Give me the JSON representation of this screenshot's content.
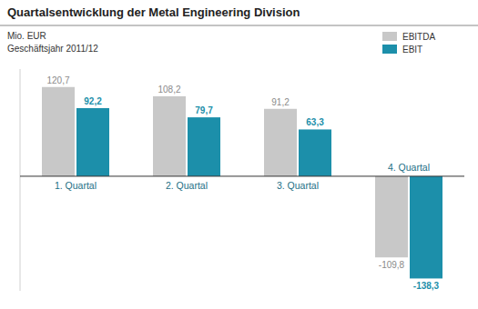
{
  "chart_data": {
    "type": "bar",
    "title": "Quartalsentwicklung der Metal Engineering Division",
    "y_label": "Mio. EUR",
    "subtitle": "Geschäftsjahr 2011/12",
    "categories": [
      "1. Quartal",
      "2. Quartal",
      "3. Quartal",
      "4. Quartal"
    ],
    "series": [
      {
        "name": "EBITDA",
        "color": "#c8c8c8",
        "values": [
          120.7,
          108.2,
          91.2,
          -109.8
        ],
        "value_labels": [
          "120,7",
          "108,2",
          "91,2",
          "-109,8"
        ]
      },
      {
        "name": "EBIT",
        "color": "#1c8faa",
        "values": [
          92.2,
          79.7,
          63.3,
          -138.3
        ],
        "value_labels": [
          "92,2",
          "79,7",
          "63,3",
          "-138,3"
        ]
      }
    ],
    "ylim": [
      -155,
      145
    ],
    "data_labels": true,
    "tick_labels": "x",
    "legend": "upper right",
    "grid": false
  }
}
